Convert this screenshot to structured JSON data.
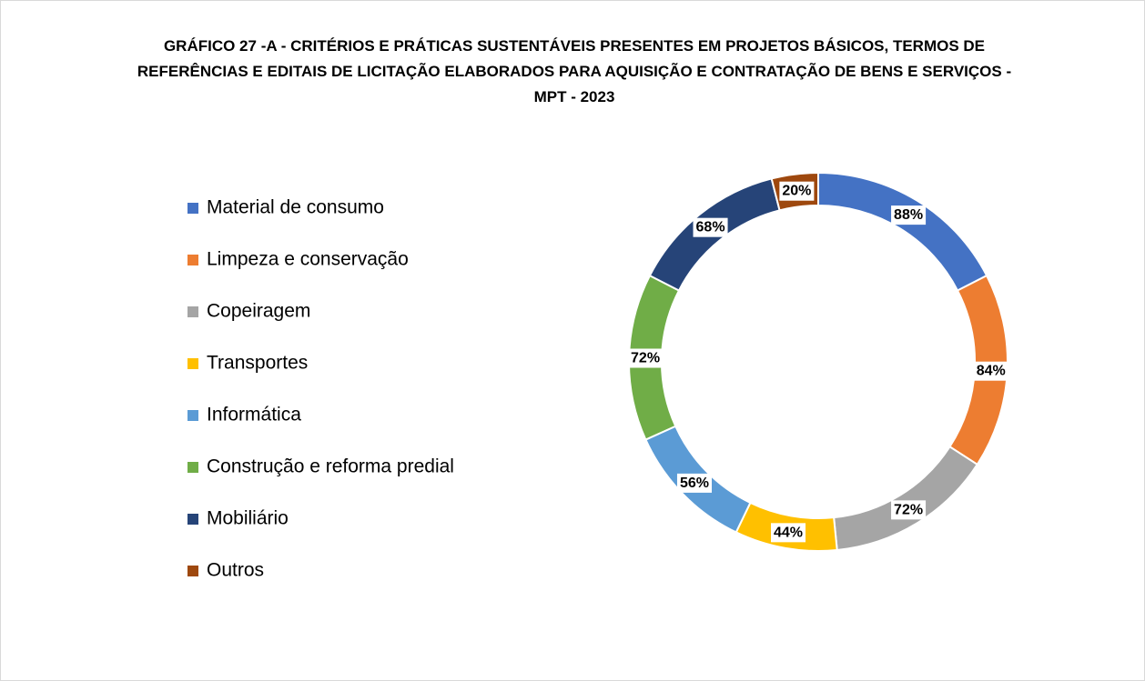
{
  "chart_data": {
    "type": "pie",
    "title": "GRÁFICO 27 -A - CRITÉRIOS E PRÁTICAS SUSTENTÁVEIS PRESENTES EM PROJETOS BÁSICOS, TERMOS DE REFERÊNCIAS E EDITAIS DE LICITAÇÃO ELABORADOS PARA AQUISIÇÃO E CONTRATAÇÃO DE BENS E SERVIÇOS - MPT - 2023",
    "categories": [
      "Material de consumo",
      "Limpeza e conservação",
      "Copeiragem",
      "Transportes",
      "Informática",
      "Construção e reforma predial",
      "Mobiliário",
      "Outros"
    ],
    "values": [
      88,
      84,
      72,
      44,
      56,
      72,
      68,
      20
    ],
    "value_labels": [
      "88%",
      "84%",
      "72%",
      "44%",
      "56%",
      "72%",
      "68%",
      "20%"
    ],
    "colors": [
      "#4472c4",
      "#ed7d31",
      "#a5a5a5",
      "#ffc000",
      "#5b9bd5",
      "#70ad47",
      "#264478",
      "#9e480e"
    ],
    "donut": true,
    "legend": "left"
  }
}
